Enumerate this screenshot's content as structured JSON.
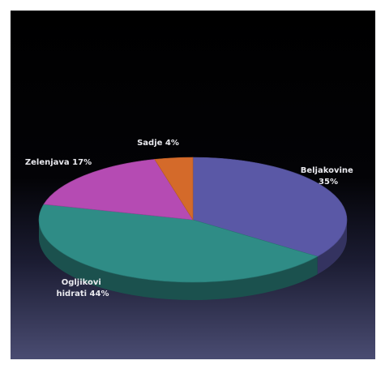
{
  "chart_data": {
    "type": "pie",
    "title": "",
    "three_d": true,
    "legend": "none",
    "slices": [
      {
        "name": "Beljakovine",
        "value": 35,
        "value_label": "35%",
        "color": "#5a58a6"
      },
      {
        "name": "Ogljikovi hidrati",
        "value": 44,
        "value_label": "44%",
        "color": "#2f8c86"
      },
      {
        "name": "Zelenjava",
        "value": 17,
        "value_label": "17%",
        "color": "#b54bb3"
      },
      {
        "name": "Sadje",
        "value": 4,
        "value_label": "4%",
        "color": "#d46a2a"
      }
    ],
    "labels": {
      "beljakovine": [
        "Beljakovine",
        "35%"
      ],
      "ogljikovi": [
        "Ogljikovi",
        "hidrati 44%"
      ],
      "zelenjava": [
        "Zelenjava 17%"
      ],
      "sadje": [
        "Sadje 4%"
      ]
    }
  }
}
